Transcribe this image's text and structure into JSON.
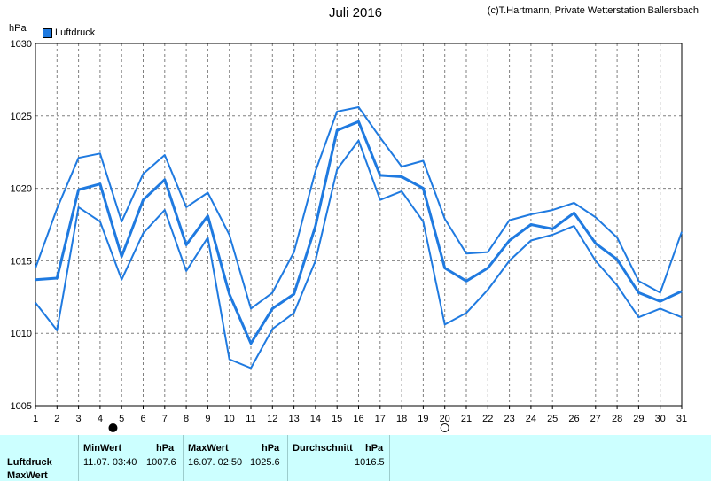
{
  "header": {
    "title": "Juli 2016",
    "credit": "(c)T.Hartmann, Private Wetterstation Ballersbach",
    "unit": "hPa",
    "legend_label": "Luftdruck"
  },
  "colors": {
    "series": "#1f7ae0",
    "grid": "#808080",
    "stats_bg": "#ccffff"
  },
  "moon_icons": [
    {
      "day": 4.6,
      "name": "new-moon-icon",
      "fill": "black"
    },
    {
      "day": 20.0,
      "name": "full-moon-icon",
      "fill": "white"
    }
  ],
  "chart_data": {
    "type": "line",
    "title": "Juli 2016",
    "ylabel": "hPa",
    "x": [
      1,
      2,
      3,
      4,
      5,
      6,
      7,
      8,
      9,
      10,
      11,
      12,
      13,
      14,
      15,
      16,
      17,
      18,
      19,
      20,
      21,
      22,
      23,
      24,
      25,
      26,
      27,
      28,
      29,
      30,
      31
    ],
    "ylim": [
      1005,
      1030
    ],
    "yticks": [
      1005,
      1010,
      1015,
      1020,
      1025,
      1030
    ],
    "grid": true,
    "legend": "top-left",
    "series": [
      {
        "name": "max",
        "values": [
          1014.5,
          1018.6,
          1022.1,
          1022.4,
          1017.7,
          1021.0,
          1022.3,
          1018.7,
          1019.7,
          1016.8,
          1011.7,
          1012.8,
          1015.6,
          1021.2,
          1025.3,
          1025.6,
          1023.5,
          1021.5,
          1021.9,
          1017.9,
          1015.5,
          1015.6,
          1017.8,
          1018.2,
          1018.5,
          1019.0,
          1018.0,
          1016.6,
          1013.6,
          1012.8,
          1017.0
        ]
      },
      {
        "name": "Luftdruck",
        "values": [
          1013.7,
          1013.8,
          1019.9,
          1020.3,
          1015.3,
          1019.2,
          1020.6,
          1016.1,
          1018.1,
          1012.7,
          1009.3,
          1011.7,
          1012.7,
          1017.4,
          1024.0,
          1024.6,
          1020.9,
          1020.8,
          1020.0,
          1014.5,
          1013.6,
          1014.5,
          1016.4,
          1017.5,
          1017.2,
          1018.3,
          1016.2,
          1015.1,
          1012.8,
          1012.2,
          1012.9
        ]
      },
      {
        "name": "min",
        "values": [
          1012.1,
          1010.2,
          1018.7,
          1017.7,
          1013.7,
          1016.9,
          1018.5,
          1014.3,
          1016.6,
          1008.2,
          1007.6,
          1010.3,
          1011.4,
          1015.0,
          1021.3,
          1023.3,
          1019.2,
          1019.8,
          1017.7,
          1010.6,
          1011.4,
          1013.0,
          1015.0,
          1016.4,
          1016.8,
          1017.4,
          1015.0,
          1013.3,
          1011.1,
          1011.7,
          1011.1
        ]
      }
    ]
  },
  "stats": {
    "row_label_1": "Luftdruck",
    "row_label_2": "MaxWert",
    "min_header": "MinWert",
    "min_unit": "hPa",
    "min_time": "11.07.  03:40",
    "min_value": "1007.6",
    "max_header": "MaxWert",
    "max_unit": "hPa",
    "max_time": "16.07.  02:50",
    "max_value": "1025.6",
    "avg_header": "Durchschnitt",
    "avg_unit": "hPa",
    "avg_value": "1016.5"
  }
}
